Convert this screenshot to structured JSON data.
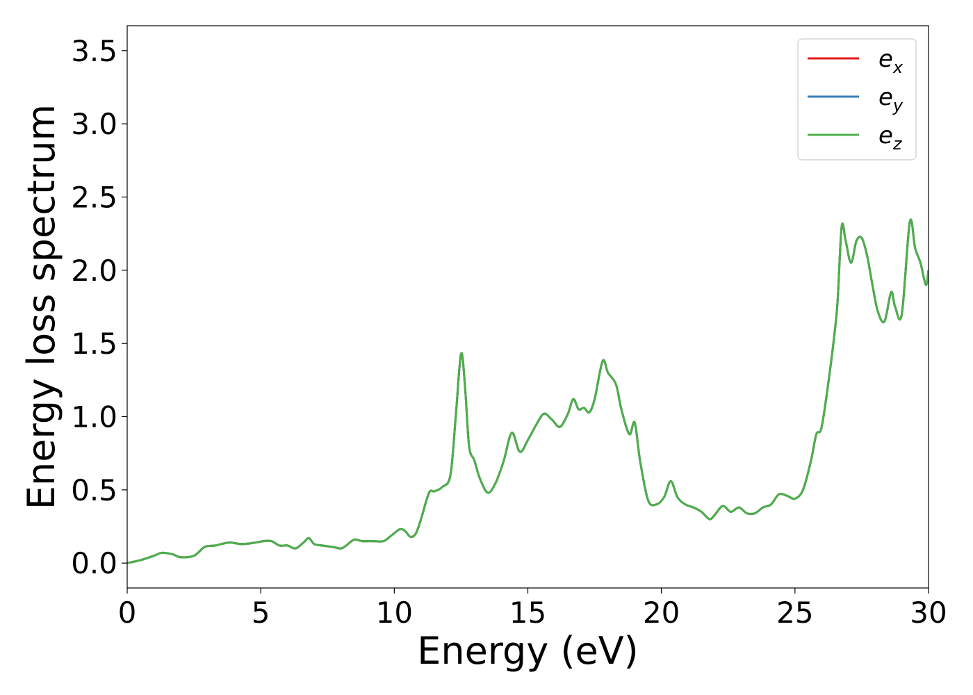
{
  "chart_data": {
    "type": "line",
    "xlabel": "Energy (eV)",
    "ylabel": "Energy loss spectrum",
    "xlim": [
      0,
      30
    ],
    "ylim": [
      -0.17,
      3.67
    ],
    "xticks": [
      0,
      5,
      10,
      15,
      20,
      25,
      30
    ],
    "yticks": [
      0.0,
      0.5,
      1.0,
      1.5,
      2.0,
      2.5,
      3.0,
      3.5
    ],
    "xtick_labels": [
      "0",
      "5",
      "10",
      "15",
      "20",
      "25",
      "30"
    ],
    "ytick_labels": [
      "0.0",
      "0.5",
      "1.0",
      "1.5",
      "2.0",
      "2.5",
      "3.0",
      "3.5"
    ],
    "grid": false,
    "legend_position": "top-right",
    "x": [
      0,
      0.5,
      1.0,
      1.3,
      1.7,
      2.0,
      2.5,
      2.9,
      3.3,
      3.8,
      4.3,
      4.8,
      5.1,
      5.4,
      5.7,
      6.0,
      6.3,
      6.6,
      6.8,
      7.0,
      7.3,
      7.7,
      8.0,
      8.2,
      8.5,
      8.8,
      9.2,
      9.6,
      9.9,
      10.2,
      10.4,
      10.6,
      10.8,
      11.0,
      11.3,
      11.5,
      11.8,
      12.1,
      12.3,
      12.5,
      12.65,
      12.8,
      13.0,
      13.2,
      13.5,
      13.8,
      14.1,
      14.4,
      14.7,
      15.0,
      15.3,
      15.6,
      15.9,
      16.2,
      16.5,
      16.7,
      16.9,
      17.1,
      17.3,
      17.5,
      17.8,
      18.0,
      18.3,
      18.5,
      18.8,
      19.0,
      19.2,
      19.5,
      19.8,
      20.1,
      20.35,
      20.6,
      20.9,
      21.2,
      21.5,
      21.8,
      22.0,
      22.3,
      22.6,
      22.9,
      23.2,
      23.5,
      23.8,
      24.1,
      24.4,
      24.7,
      25.0,
      25.3,
      25.6,
      25.8,
      26.0,
      26.3,
      26.5,
      26.6,
      26.75,
      26.9,
      27.1,
      27.3,
      27.5,
      27.7,
      27.9,
      28.1,
      28.35,
      28.6,
      28.75,
      29.0,
      29.3,
      29.5,
      29.7,
      29.9,
      30.0
    ],
    "series": [
      {
        "name": "e_x",
        "label_base": "e",
        "label_sub": "x",
        "color": "#e41a1c",
        "values": [
          0.0,
          0.02,
          0.05,
          0.07,
          0.06,
          0.04,
          0.05,
          0.11,
          0.12,
          0.14,
          0.13,
          0.14,
          0.15,
          0.15,
          0.12,
          0.12,
          0.1,
          0.14,
          0.17,
          0.13,
          0.12,
          0.11,
          0.1,
          0.12,
          0.16,
          0.15,
          0.15,
          0.15,
          0.19,
          0.23,
          0.22,
          0.18,
          0.2,
          0.3,
          0.48,
          0.49,
          0.52,
          0.6,
          1.0,
          1.43,
          1.2,
          0.8,
          0.7,
          0.58,
          0.48,
          0.55,
          0.7,
          0.89,
          0.76,
          0.84,
          0.94,
          1.02,
          0.98,
          0.93,
          1.02,
          1.12,
          1.05,
          1.06,
          1.03,
          1.12,
          1.38,
          1.3,
          1.22,
          1.05,
          0.88,
          0.96,
          0.7,
          0.43,
          0.4,
          0.45,
          0.56,
          0.45,
          0.4,
          0.38,
          0.35,
          0.3,
          0.33,
          0.39,
          0.35,
          0.38,
          0.34,
          0.34,
          0.38,
          0.4,
          0.47,
          0.46,
          0.44,
          0.5,
          0.7,
          0.88,
          0.93,
          1.3,
          1.6,
          1.8,
          2.3,
          2.2,
          2.05,
          2.2,
          2.22,
          2.1,
          1.9,
          1.72,
          1.65,
          1.85,
          1.75,
          1.7,
          2.33,
          2.15,
          2.05,
          1.9,
          2.0
        ]
      },
      {
        "name": "e_y",
        "label_base": "e",
        "label_sub": "y",
        "color": "#377eb8",
        "values": [
          0.0,
          0.02,
          0.05,
          0.07,
          0.06,
          0.04,
          0.05,
          0.11,
          0.12,
          0.14,
          0.13,
          0.14,
          0.15,
          0.15,
          0.12,
          0.12,
          0.1,
          0.14,
          0.17,
          0.13,
          0.12,
          0.11,
          0.1,
          0.12,
          0.16,
          0.15,
          0.15,
          0.15,
          0.19,
          0.23,
          0.22,
          0.18,
          0.2,
          0.3,
          0.48,
          0.49,
          0.52,
          0.6,
          1.0,
          1.43,
          1.2,
          0.8,
          0.7,
          0.58,
          0.48,
          0.55,
          0.7,
          0.89,
          0.76,
          0.84,
          0.94,
          1.02,
          0.98,
          0.93,
          1.02,
          1.12,
          1.05,
          1.06,
          1.03,
          1.12,
          1.38,
          1.3,
          1.22,
          1.05,
          0.88,
          0.96,
          0.7,
          0.43,
          0.4,
          0.45,
          0.56,
          0.45,
          0.4,
          0.38,
          0.35,
          0.3,
          0.33,
          0.39,
          0.35,
          0.38,
          0.34,
          0.34,
          0.38,
          0.4,
          0.47,
          0.46,
          0.44,
          0.5,
          0.7,
          0.88,
          0.93,
          1.3,
          1.6,
          1.8,
          2.3,
          2.2,
          2.05,
          2.2,
          2.22,
          2.1,
          1.9,
          1.72,
          1.65,
          1.85,
          1.75,
          1.7,
          2.33,
          2.15,
          2.05,
          1.9,
          2.0
        ]
      },
      {
        "name": "e_z",
        "label_base": "e",
        "label_sub": "z",
        "color": "#4daf4a",
        "values": [
          0.0,
          0.02,
          0.05,
          0.07,
          0.06,
          0.04,
          0.05,
          0.11,
          0.12,
          0.14,
          0.13,
          0.14,
          0.15,
          0.15,
          0.12,
          0.12,
          0.1,
          0.14,
          0.17,
          0.13,
          0.12,
          0.11,
          0.1,
          0.12,
          0.16,
          0.15,
          0.15,
          0.15,
          0.19,
          0.23,
          0.22,
          0.18,
          0.2,
          0.3,
          0.48,
          0.49,
          0.52,
          0.6,
          1.0,
          1.43,
          1.2,
          0.8,
          0.7,
          0.58,
          0.48,
          0.55,
          0.7,
          0.89,
          0.76,
          0.84,
          0.94,
          1.02,
          0.98,
          0.93,
          1.02,
          1.12,
          1.05,
          1.06,
          1.03,
          1.12,
          1.38,
          1.3,
          1.22,
          1.05,
          0.88,
          0.96,
          0.7,
          0.43,
          0.4,
          0.45,
          0.56,
          0.45,
          0.4,
          0.38,
          0.35,
          0.3,
          0.33,
          0.39,
          0.35,
          0.38,
          0.34,
          0.34,
          0.38,
          0.4,
          0.47,
          0.46,
          0.44,
          0.5,
          0.7,
          0.88,
          0.93,
          1.3,
          1.6,
          1.8,
          2.3,
          2.2,
          2.05,
          2.2,
          2.22,
          2.1,
          1.9,
          1.72,
          1.65,
          1.85,
          1.75,
          1.7,
          2.33,
          2.15,
          2.05,
          1.9,
          2.0
        ]
      }
    ]
  }
}
